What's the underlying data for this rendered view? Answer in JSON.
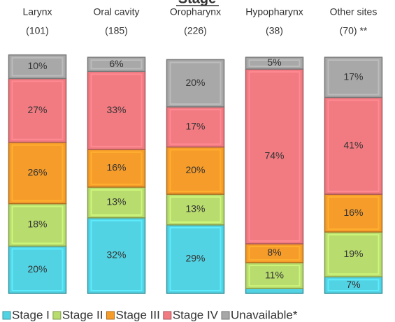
{
  "chart_data": {
    "type": "stacked_bar",
    "title": "Stage",
    "categories": [
      "Larynx",
      "Oral cavity",
      "Oropharynx",
      "Hypopharynx",
      "Other sites"
    ],
    "category_sublabels": [
      "(101)",
      "(185)",
      "(226)",
      "(38)",
      "(70) **"
    ],
    "ylim": [
      0,
      100
    ],
    "series": [
      {
        "name": "Stage I",
        "color": "#52d3e3",
        "values": [
          20,
          32,
          29,
          2,
          7
        ],
        "value_labels": [
          "20%",
          "32%",
          "29%",
          null,
          "7%"
        ]
      },
      {
        "name": "Stage II",
        "color": "#b8dc6e",
        "values": [
          18,
          13,
          13,
          11,
          19
        ],
        "value_labels": [
          "18%",
          "13%",
          "13%",
          "11%",
          "19%"
        ]
      },
      {
        "name": "Stage III",
        "color": "#f69c2a",
        "values": [
          26,
          16,
          20,
          8,
          16
        ],
        "value_labels": [
          "26%",
          "16%",
          "20%",
          "8%",
          "16%"
        ]
      },
      {
        "name": "Stage IV",
        "color": "#f27b82",
        "values": [
          27,
          33,
          17,
          74,
          41
        ],
        "value_labels": [
          "27%",
          "33%",
          "17%",
          "74%",
          "41%"
        ]
      },
      {
        "name": "Unavailable*",
        "color": "#a8a8a8",
        "values": [
          10,
          6,
          20,
          5,
          17
        ],
        "value_labels": [
          "10%",
          "6%",
          "20%",
          "5%",
          "17%"
        ]
      }
    ],
    "legend": "bottom"
  }
}
